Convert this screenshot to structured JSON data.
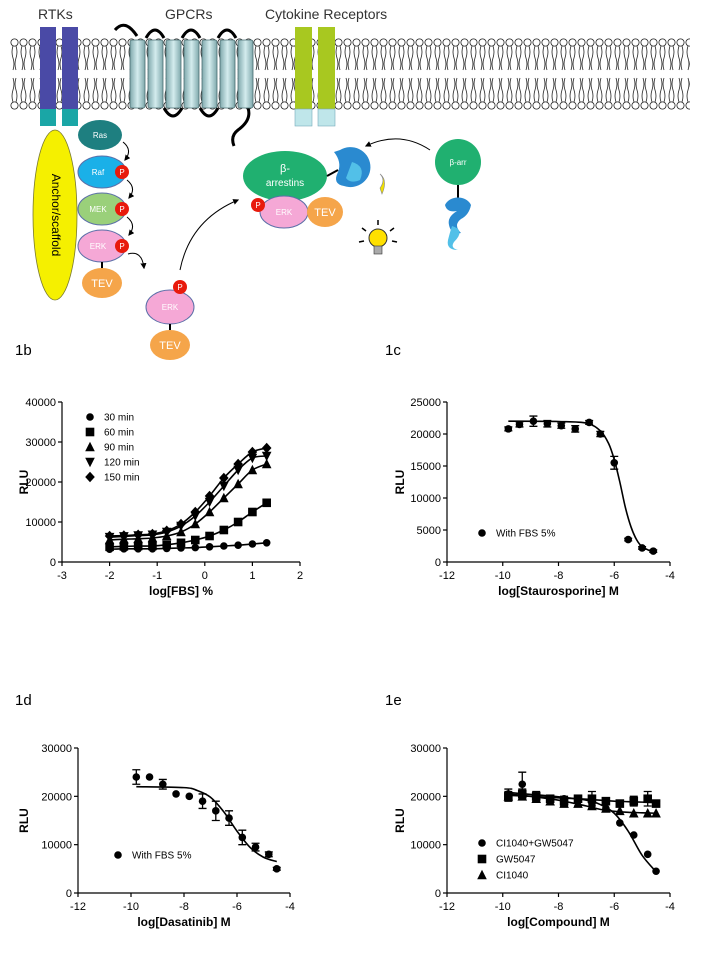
{
  "diagram": {
    "rtks": "RTKs",
    "gpcrs": "GPCRs",
    "cytokine": "Cytokine Receptors",
    "ras": "Ras",
    "raf": "Raf",
    "mek": "MEK",
    "erk": "ERK",
    "p": "P",
    "tev": "TEV",
    "scaffold": "Anchor/scaffold",
    "arrestins_1": "β-",
    "arrestins_2": "arrestins",
    "barr": "β-arr"
  },
  "chart_data": [
    {
      "type": "scatter",
      "panel": "1b",
      "ylabel": "RLU",
      "xlabel": "log[FBS] %",
      "xlim": [
        -3,
        2
      ],
      "xticks": [
        -3,
        -2,
        -1,
        0,
        1,
        2
      ],
      "ylim": [
        0,
        40000
      ],
      "yticks": [
        0,
        10000,
        20000,
        30000,
        40000
      ],
      "legend": "upper left",
      "x": [
        -2,
        -1.7,
        -1.4,
        -1.1,
        -0.8,
        -0.5,
        -0.2,
        0.1,
        0.4,
        0.7,
        1.0,
        1.3
      ],
      "series": [
        {
          "name": "30 min",
          "marker": "circle",
          "color": "#000000",
          "values": [
            3200,
            3300,
            3300,
            3300,
            3400,
            3500,
            3600,
            3800,
            4000,
            4200,
            4500,
            4800
          ]
        },
        {
          "name": "60 min",
          "marker": "square",
          "color": "#000000",
          "values": [
            3800,
            3900,
            4000,
            4000,
            4300,
            4800,
            5500,
            6500,
            8000,
            10000,
            12500,
            14800
          ]
        },
        {
          "name": "90 min",
          "marker": "triangle-up",
          "color": "#000000",
          "values": [
            5500,
            5700,
            5800,
            6000,
            6500,
            7500,
            9500,
            12500,
            16000,
            19500,
            23000,
            24500
          ]
        },
        {
          "name": "120 min",
          "marker": "triangle-down",
          "color": "#000000",
          "values": [
            6200,
            6400,
            6600,
            6800,
            7500,
            9000,
            11500,
            15000,
            19000,
            23000,
            26000,
            26500
          ]
        },
        {
          "name": "150 min",
          "marker": "diamond",
          "color": "#000000",
          "values": [
            6500,
            6600,
            6800,
            7000,
            7800,
            9500,
            12500,
            16500,
            21000,
            24500,
            27500,
            28500
          ]
        }
      ]
    },
    {
      "type": "scatter",
      "panel": "1c",
      "ylabel": "RLU",
      "xlabel": "log[Staurosporine] M",
      "xlim": [
        -12,
        -4
      ],
      "xticks": [
        -12,
        -10,
        -8,
        -6,
        -4
      ],
      "ylim": [
        0,
        25000
      ],
      "yticks": [
        0,
        5000,
        10000,
        15000,
        20000,
        25000
      ],
      "legend": "lower left",
      "x": [
        -9.8,
        -9.4,
        -8.9,
        -8.4,
        -7.9,
        -7.4,
        -6.9,
        -6.5,
        -6.0,
        -5.5,
        -5.0,
        -4.6
      ],
      "fit_x": [
        -9.8,
        -8,
        -7,
        -6.5,
        -6.2,
        -6,
        -5.8,
        -5.6,
        -5.4,
        -5.2,
        -5,
        -4.6
      ],
      "series": [
        {
          "name": "With FBS 5%",
          "marker": "circle",
          "color": "#000000",
          "values": [
            20800,
            21500,
            22000,
            21600,
            21300,
            20800,
            21800,
            20000,
            15500,
            3500,
            2200,
            1700
          ],
          "errors": [
            300,
            400,
            800,
            500,
            400,
            500,
            300,
            400,
            1000,
            200,
            200,
            200
          ],
          "fit": [
            22000,
            21950,
            21700,
            20500,
            18500,
            16000,
            12500,
            8500,
            5500,
            3500,
            2400,
            1500
          ]
        }
      ]
    },
    {
      "type": "scatter",
      "panel": "1d",
      "ylabel": "RLU",
      "xlabel": "log[Dasatinib] M",
      "xlim": [
        -12,
        -4
      ],
      "xticks": [
        -12,
        -10,
        -8,
        -6,
        -4
      ],
      "ylim": [
        0,
        30000
      ],
      "yticks": [
        0,
        10000,
        20000,
        30000
      ],
      "legend": "lower left",
      "x": [
        -9.8,
        -9.3,
        -8.8,
        -8.3,
        -7.8,
        -7.3,
        -6.8,
        -6.3,
        -5.8,
        -5.3,
        -4.8,
        -4.5
      ],
      "fit_x": [
        -9.8,
        -8,
        -7.5,
        -7,
        -6.5,
        -6,
        -5.5,
        -5,
        -4.5
      ],
      "series": [
        {
          "name": "With FBS 5%",
          "marker": "circle",
          "color": "#000000",
          "values": [
            24000,
            24000,
            22500,
            20500,
            20000,
            19000,
            17000,
            15500,
            11500,
            9500,
            8000,
            5000
          ],
          "errors": [
            1500,
            0,
            1000,
            0,
            0,
            1500,
            2000,
            1500,
            1500,
            800,
            500,
            300
          ],
          "fit": [
            22000,
            21800,
            21200,
            19800,
            16800,
            12800,
            9400,
            7400,
            6500
          ]
        }
      ]
    },
    {
      "type": "scatter",
      "panel": "1e",
      "ylabel": "RLU",
      "xlabel": "log[Compound] M",
      "xlim": [
        -12,
        -4
      ],
      "xticks": [
        -12,
        -10,
        -8,
        -6,
        -4
      ],
      "ylim": [
        0,
        30000
      ],
      "yticks": [
        0,
        10000,
        20000,
        30000
      ],
      "legend": "lower left",
      "x": [
        -9.8,
        -9.3,
        -8.8,
        -8.3,
        -7.8,
        -7.3,
        -6.8,
        -6.3,
        -5.8,
        -5.3,
        -4.8,
        -4.5
      ],
      "fit_x": [
        -9.8,
        -9,
        -8,
        -7,
        -6.5,
        -6,
        -5.5,
        -5,
        -4.5
      ],
      "series": [
        {
          "name": "CI1040+GW5047",
          "marker": "circle",
          "color": "#000000",
          "values": [
            20500,
            22500,
            20000,
            19500,
            19500,
            19000,
            18500,
            17500,
            14500,
            12000,
            8000,
            4500
          ],
          "errors": [
            1000,
            2500,
            1000,
            0,
            0,
            1000,
            1000,
            0,
            0,
            0,
            0,
            0
          ],
          "fit": [
            20800,
            20400,
            19900,
            19200,
            18300,
            16500,
            12800,
            7800,
            4400
          ]
        },
        {
          "name": "GW5047",
          "marker": "square",
          "color": "#000000",
          "values": [
            20000,
            20500,
            20000,
            19500,
            19000,
            19500,
            19500,
            19000,
            18500,
            19000,
            19500,
            18500
          ],
          "errors": [
            1000,
            1000,
            0,
            0,
            1000,
            0,
            1500,
            0,
            0,
            1000,
            1500,
            500
          ],
          "fit": [
            20200,
            20000,
            19700,
            19400,
            19200,
            19000,
            18900,
            18800,
            18700
          ]
        },
        {
          "name": "CI1040",
          "marker": "triangle-up",
          "color": "#000000",
          "values": [
            20000,
            20000,
            19500,
            19000,
            18500,
            18500,
            18000,
            17500,
            17000,
            16500,
            16500,
            16500
          ],
          "fit": [
            20500,
            20000,
            19200,
            18000,
            17300,
            16900,
            16700,
            16600,
            16500
          ]
        }
      ]
    }
  ]
}
